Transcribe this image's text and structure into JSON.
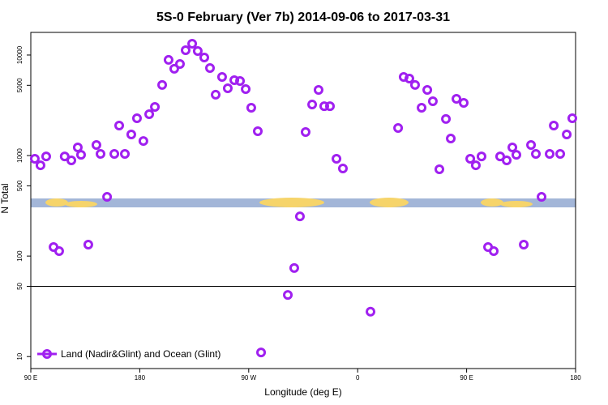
{
  "chart_data": {
    "type": "scatter",
    "title": "5S-0 February (Ver 7b)   2014-09-06 to 2017-03-31",
    "x_label": "Longitude (deg E)",
    "y_label": "N Total",
    "log_y": true,
    "reference_line": 50,
    "xlim": [
      90,
      540
    ],
    "xticks": [
      {
        "value": 90,
        "label": "90 E"
      },
      180,
      {
        "value": 270,
        "label": "90 W"
      },
      {
        "value": 360,
        "label": "0"
      },
      {
        "value": 450,
        "label": "90 E"
      },
      {
        "value": 540,
        "label": "180"
      }
    ],
    "ylim": [
      7.6,
      16800
    ],
    "yticks": [
      10,
      50,
      100,
      500,
      1000,
      5000,
      10000
    ],
    "legend": "bottom-left",
    "series": [
      {
        "name": "Land (Nadir&Glint) and Ocean (Glint)",
        "color": "#a020f0",
        "x": [
          93.3,
          98,
          102.7,
          108.8,
          113.4,
          118,
          123.5,
          128.8,
          131.5,
          137.5,
          144.2,
          147.6,
          153,
          159,
          163,
          167.7,
          173,
          177.7,
          183,
          187.8,
          192.5,
          198.5,
          203.8,
          208.5,
          213.2,
          217.9,
          223.3,
          227.9,
          233.3,
          238,
          242.7,
          248,
          252.7,
          258.1,
          262.8,
          267.5,
          272.1,
          277.5,
          280.2,
          302.3,
          307.6,
          312.3,
          317,
          322.4,
          327.7,
          332.4,
          337.1,
          342.5,
          347.8,
          370.6,
          393.4,
          398,
          402.7,
          407.4,
          412.8,
          417.5,
          422.1,
          427.5,
          432.9,
          436.9,
          441.6,
          447.6,
          453,
          457.6,
          462.3,
          467.7,
          472.4,
          477.7,
          483.1,
          487.8,
          491.1,
          497.2,
          503.2,
          507.2,
          511.9,
          518.6,
          522,
          527.3,
          532.7,
          537.3
        ],
        "values": [
          930,
          800,
          980,
          123,
          112,
          980,
          895,
          1205,
          1018,
          130,
          1275,
          1038,
          388,
          1038,
          1987,
          1038,
          1620,
          2350,
          1396,
          2580,
          3050,
          5040,
          8950,
          7300,
          8150,
          11170,
          12970,
          10960,
          9460,
          7430,
          4030,
          6050,
          4670,
          5620,
          5520,
          4580,
          2990,
          1746,
          11,
          41,
          76,
          248,
          1714,
          3220,
          4500,
          3100,
          3100,
          930,
          743,
          28,
          1880,
          6050,
          5830,
          5040,
          2990,
          4500,
          3470,
          730,
          2310,
          1476,
          3670,
          3340,
          930,
          800,
          980,
          123,
          112,
          980,
          895,
          1205,
          1018,
          130,
          1275,
          1038,
          388,
          1038,
          1987,
          1038,
          1620,
          2350
        ]
      }
    ]
  }
}
